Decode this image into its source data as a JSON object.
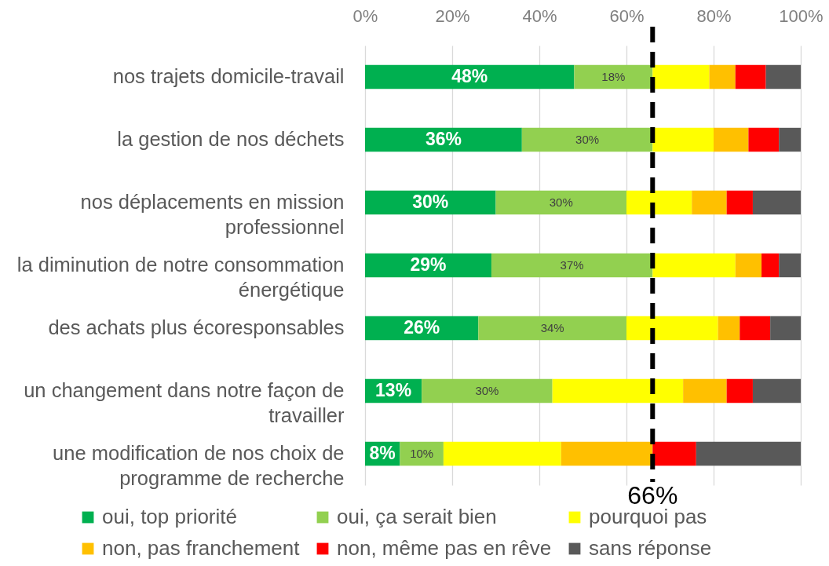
{
  "chart_data": {
    "type": "bar",
    "orientation": "horizontal",
    "stacked": true,
    "categories": [
      "nos trajets domicile-travail",
      "la gestion de nos déchets",
      "nos déplacements en mission professionnel",
      "la diminution de notre consommation énergétique",
      "des achats plus écoresponsables",
      "un changement dans notre façon de travailler",
      "une modification de nos choix de programme de recherche"
    ],
    "series": [
      {
        "name": "oui, top priorité",
        "color": "#00b050",
        "values": [
          48,
          36,
          30,
          29,
          26,
          13,
          8
        ],
        "value_labels": [
          "48%",
          "36%",
          "30%",
          "29%",
          "26%",
          "13%",
          "8%"
        ]
      },
      {
        "name": "oui, ça serait bien",
        "color": "#92d050",
        "values": [
          18,
          30,
          30,
          37,
          34,
          30,
          10
        ],
        "value_labels": [
          "18%",
          "30%",
          "30%",
          "37%",
          "34%",
          "30%",
          "10%"
        ]
      },
      {
        "name": "pourquoi pas",
        "color": "#ffff00",
        "values": [
          13,
          14,
          15,
          19,
          21,
          30,
          27
        ]
      },
      {
        "name": "non, pas franchement",
        "color": "#ffc000",
        "values": [
          6,
          8,
          8,
          6,
          5,
          10,
          21
        ]
      },
      {
        "name": "non, même pas en rêve",
        "color": "#ff0000",
        "values": [
          7,
          7,
          6,
          4,
          7,
          6,
          10
        ]
      },
      {
        "name": "sans réponse",
        "color": "#595959",
        "values": [
          8,
          5,
          11,
          5,
          7,
          11,
          24
        ]
      }
    ],
    "xlim": [
      0,
      100
    ],
    "xticks": [
      {
        "value": 0,
        "label": "0%"
      },
      {
        "value": 20,
        "label": "20%"
      },
      {
        "value": 40,
        "label": "40%"
      },
      {
        "value": 60,
        "label": "60%"
      },
      {
        "value": 80,
        "label": "80%"
      },
      {
        "value": 100,
        "label": "100%"
      }
    ],
    "grid": "x",
    "legend": "bottom",
    "ref_lines": [
      {
        "axis": "x",
        "value": 66,
        "label": "66%",
        "color": "#000000",
        "line_style": "dashed"
      }
    ]
  }
}
